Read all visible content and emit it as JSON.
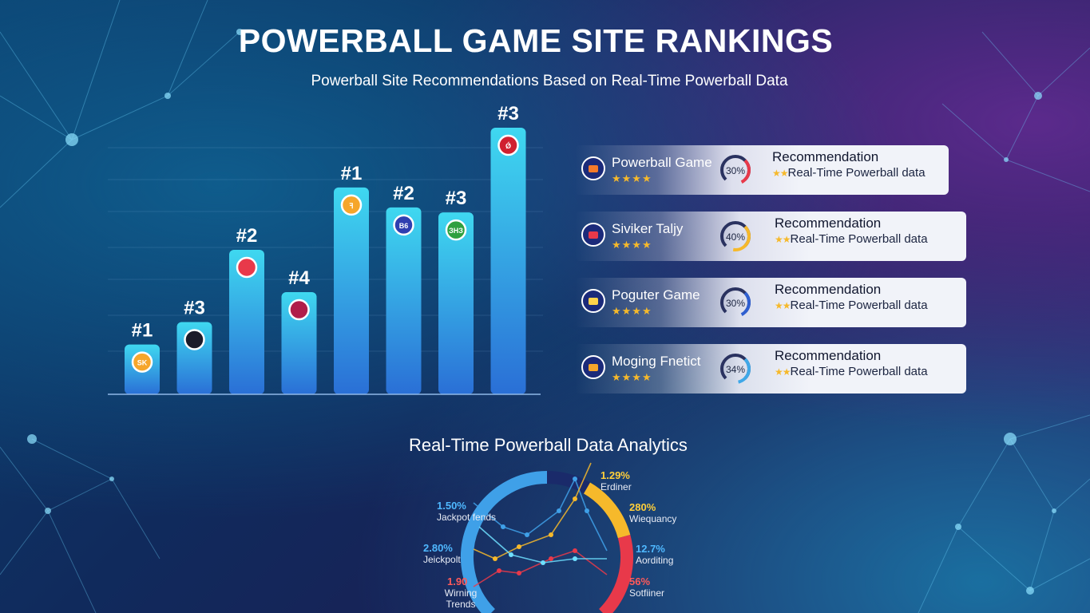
{
  "title": "POWERBALL GAME SITE RANKINGS",
  "subtitle": "Powerball Site Recommendations Based on Real-Time Powerball Data",
  "chart_data": {
    "type": "bar",
    "title": "POWERBALL GAME SITE RANKINGS",
    "categories": [
      "#1",
      "#3",
      "#2",
      "#4",
      "#1",
      "#2",
      "#3",
      "#3"
    ],
    "values": [
      2,
      2.9,
      5.8,
      4.1,
      8.3,
      7.5,
      7.3,
      10.7
    ],
    "ylim": [
      0,
      11
    ],
    "logo_texts": [
      "SK",
      "",
      "",
      "",
      "ꟻ",
      "B6",
      "ЗНЗ",
      "Ǿ"
    ],
    "colors": {
      "bar_top": "#3fd8f0",
      "bar_bottom": "#2a6fd6"
    }
  },
  "cards": [
    {
      "name": "Powerball Game",
      "stars": "★★★★",
      "pct": "30%",
      "heading": "Recommendation",
      "stars_small": "★★",
      "text": "Real-Time Powerball data",
      "arc": 0.3,
      "color": "#e8394a",
      "logo": "#f57a2a"
    },
    {
      "name": "Siviker Taljy",
      "stars": "★★★★",
      "pct": "40%",
      "heading": "Recommendation",
      "stars_small": "★★",
      "text": "Real-Time Powerball data",
      "arc": 0.4,
      "color": "#f6b92b",
      "logo": "#e8394a"
    },
    {
      "name": "Poguter Game",
      "stars": "★★★★",
      "pct": "30%",
      "heading": "Recommendation",
      "stars_small": "★★",
      "text": "Real-Time Powerball data",
      "arc": 0.3,
      "color": "#2f5fd0",
      "logo": "#ffd24a"
    },
    {
      "name": "Moging Fnetict",
      "stars": "★★★★",
      "pct": "34%",
      "heading": "Recommendation",
      "stars_small": "★★",
      "text": "Real-Time Powerball data",
      "arc": 0.34,
      "color": "#3fa8e8",
      "logo": "#f6a62b"
    }
  ],
  "analytics": {
    "title": "Real-Time Powerball Data Analytics",
    "labels": [
      {
        "value": "1.50%",
        "text": "Jackpot fends",
        "color": "#4fb8ff"
      },
      {
        "value": "2.80%",
        "text": "Jeickpolt",
        "color": "#4fb8ff"
      },
      {
        "value": "1.90",
        "text": "Wirning Trends",
        "color": "#ff5a5a"
      },
      {
        "value": "1.29%",
        "text": "Erdiner",
        "color": "#ffcf3a"
      },
      {
        "value": "280%",
        "text": "Wiequancy",
        "color": "#ffcf3a"
      },
      {
        "value": "12.7%",
        "text": "Aorditing",
        "color": "#4fb8ff"
      },
      {
        "value": "56%",
        "text": "Sotfiiner",
        "color": "#ff5a5a"
      }
    ]
  }
}
